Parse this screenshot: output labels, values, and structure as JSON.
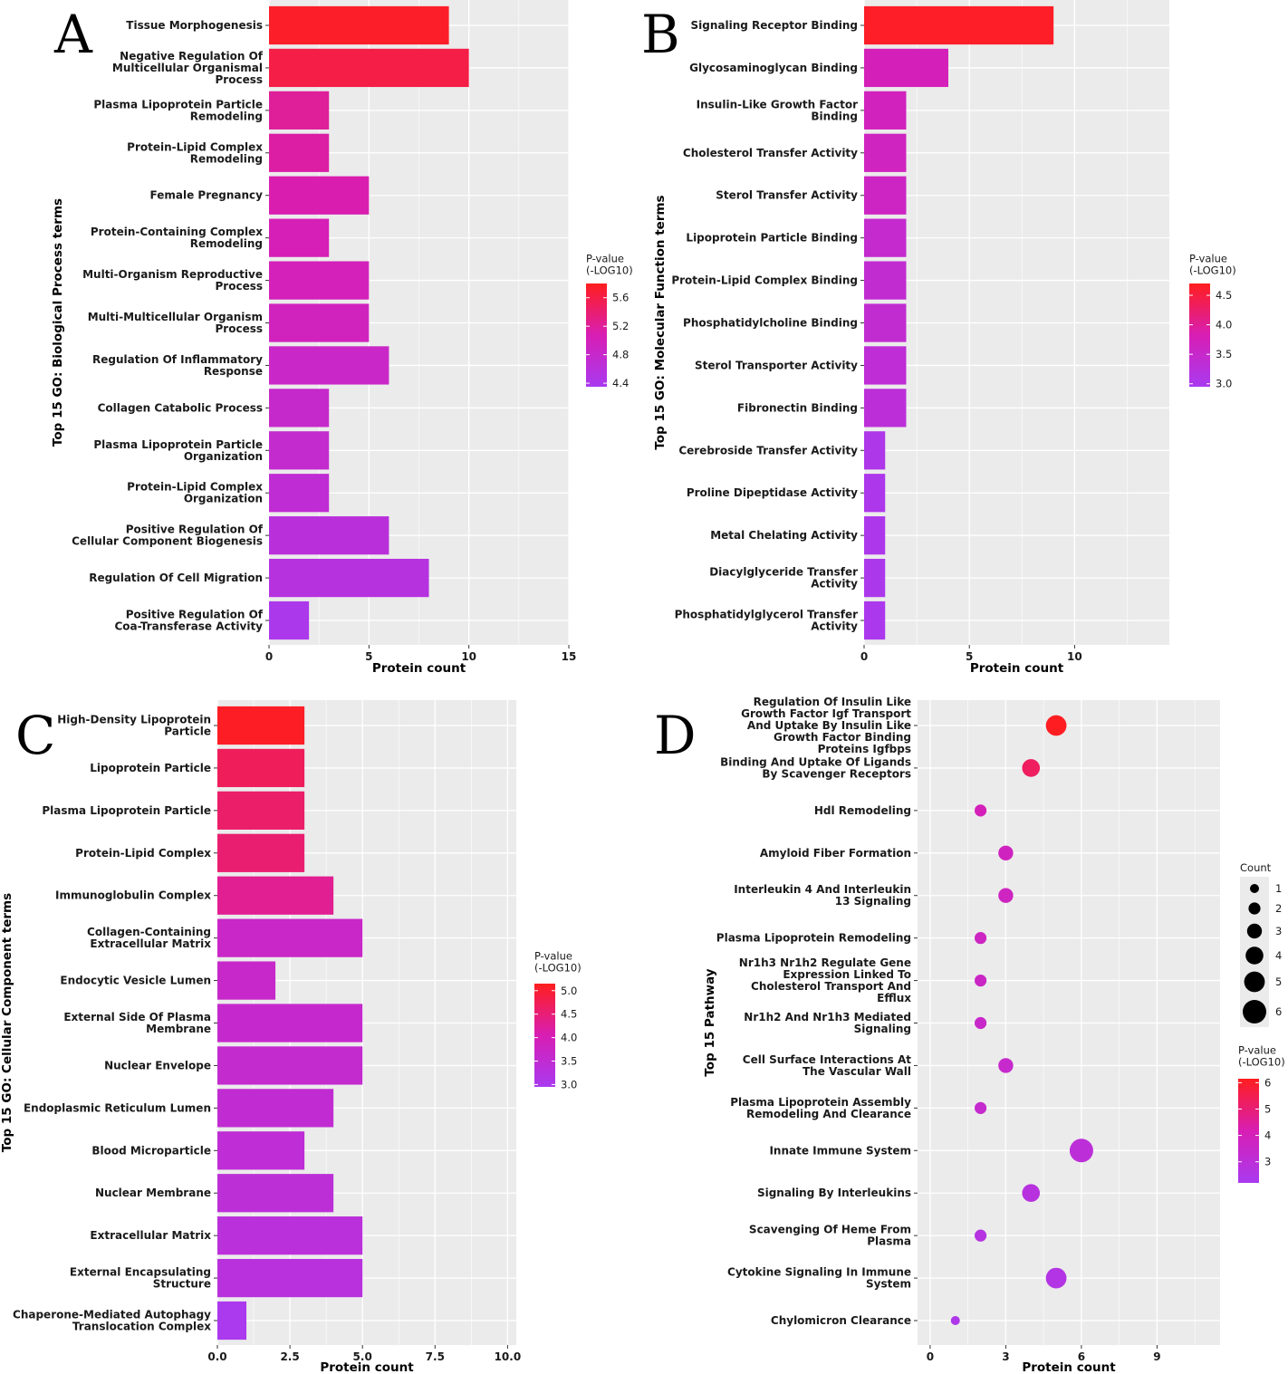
{
  "chart_data": [
    {
      "panel": "A",
      "type": "bar",
      "orientation": "horizontal",
      "xlabel": "Protein count",
      "ylabel": "Top 15 GO: Biological Process terms",
      "xlim": [
        0,
        15
      ],
      "xticks": [
        0,
        5,
        10,
        15
      ],
      "xtick_labels": [
        "0",
        "5",
        "10",
        "15"
      ],
      "categories": [
        "Tissue Morphogenesis",
        "Negative Regulation Of\nMulticellular Organismal\nProcess",
        "Plasma Lipoprotein Particle\nRemodeling",
        "Protein-Lipid Complex\nRemodeling",
        "Female Pregnancy",
        "Protein-Containing Complex\nRemodeling",
        "Multi-Organism Reproductive\nProcess",
        "Multi-Multicellular Organism\nProcess",
        "Regulation Of Inflammatory\nResponse",
        "Collagen Catabolic Process",
        "Plasma Lipoprotein Particle\nOrganization",
        "Protein-Lipid Complex\nOrganization",
        "Positive Regulation Of\nCellular Component Biogenesis",
        "Regulation Of Cell Migration",
        "Positive Regulation Of\nCoa-Transferase Activity"
      ],
      "values": [
        9,
        10,
        3,
        3,
        5,
        3,
        5,
        5,
        6,
        3,
        3,
        3,
        6,
        8,
        2
      ],
      "pvalue_log10": [
        5.75,
        5.6,
        5.2,
        5.15,
        5.1,
        5.05,
        5.0,
        4.95,
        4.85,
        4.8,
        4.75,
        4.7,
        4.6,
        4.55,
        4.4
      ],
      "legend": {
        "title": "P-value\n(-LOG10)",
        "range": [
          4.35,
          5.8
        ],
        "ticks": [
          4.4,
          4.8,
          5.2,
          5.6
        ],
        "tick_labels": [
          "4.4",
          "4.8",
          "5.2",
          "5.6"
        ]
      }
    },
    {
      "panel": "B",
      "type": "bar",
      "orientation": "horizontal",
      "xlabel": "Protein count",
      "ylabel": "Top 15 GO: Molecular Function terms",
      "xlim": [
        0,
        14.5
      ],
      "xticks": [
        0,
        5,
        10
      ],
      "xtick_labels": [
        "0",
        "5",
        "10"
      ],
      "categories": [
        "Signaling Receptor Binding",
        "Glycosaminoglycan Binding",
        "Insulin-Like Growth Factor\nBinding",
        "Cholesterol Transfer Activity",
        "Sterol Transfer Activity",
        "Lipoprotein Particle Binding",
        "Protein-Lipid Complex Binding",
        "Phosphatidylcholine Binding",
        "Sterol Transporter Activity",
        "Fibronectin Binding",
        "Cerebroside Transfer Activity",
        "Proline Dipeptidase Activity",
        "Metal Chelating Activity",
        "Diacylglyceride Transfer\nActivity",
        "Phosphatidylglycerol Transfer\nActivity"
      ],
      "values": [
        9,
        4,
        2,
        2,
        2,
        2,
        2,
        2,
        2,
        2,
        1,
        1,
        1,
        1,
        1
      ],
      "pvalue_log10": [
        4.65,
        3.75,
        3.7,
        3.65,
        3.6,
        3.45,
        3.4,
        3.4,
        3.35,
        3.3,
        3.05,
        3.03,
        3.02,
        3.01,
        3.0
      ],
      "legend": {
        "title": "P-value\n(-LOG10)",
        "range": [
          2.95,
          4.7
        ],
        "ticks": [
          3.0,
          3.5,
          4.0,
          4.5
        ],
        "tick_labels": [
          "3.0",
          "3.5",
          "4.0",
          "4.5"
        ]
      }
    },
    {
      "panel": "C",
      "type": "bar",
      "orientation": "horizontal",
      "xlabel": "Protein count",
      "ylabel": "Top 15 GO: Cellular Component terms",
      "xlim": [
        0,
        10.3
      ],
      "xticks": [
        0,
        2.5,
        5,
        7.5,
        10
      ],
      "xtick_labels": [
        "0.0",
        "2.5",
        "5.0",
        "7.5",
        "10.0"
      ],
      "categories": [
        "High-Density Lipoprotein\nParticle",
        "Lipoprotein Particle",
        "Plasma Lipoprotein Particle",
        "Protein-Lipid Complex",
        "Immunoglobulin Complex",
        "Collagen-Containing\nExtracellular Matrix",
        "Endocytic Vesicle Lumen",
        "External Side Of Plasma\nMembrane",
        "Nuclear Envelope",
        "Endoplasmic Reticulum Lumen",
        "Blood Microparticle",
        "Nuclear Membrane",
        "Extracellular Matrix",
        "External Encapsulating\nStructure",
        "Chaperone-Mediated Autophagy\nTranslocation Complex"
      ],
      "values": [
        3,
        3,
        3,
        3,
        4,
        5,
        2,
        5,
        5,
        4,
        3,
        4,
        5,
        5,
        1
      ],
      "pvalue_log10": [
        5.1,
        4.7,
        4.6,
        4.55,
        4.3,
        3.7,
        3.65,
        3.6,
        3.55,
        3.5,
        3.45,
        3.4,
        3.35,
        3.3,
        3.0
      ],
      "legend": {
        "title": "P-value\n(-LOG10)",
        "range": [
          2.95,
          5.15
        ],
        "ticks": [
          3.0,
          3.5,
          4.0,
          4.5,
          5.0
        ],
        "tick_labels": [
          "3.0",
          "3.5",
          "4.0",
          "4.5",
          "5.0"
        ]
      }
    },
    {
      "panel": "D",
      "type": "scatter",
      "subtype": "bubble",
      "xlabel": "Protein count",
      "ylabel": "Top 15 Pathway",
      "xlim": [
        -0.5,
        11.5
      ],
      "xticks": [
        0,
        3,
        6,
        9
      ],
      "xtick_labels": [
        "0",
        "3",
        "6",
        "9"
      ],
      "categories": [
        "Regulation Of Insulin Like\nGrowth Factor Igf Transport\nAnd Uptake By Insulin Like\nGrowth Factor Binding\nProteins Igfbps",
        "Binding And Uptake Of Ligands\nBy Scavenger Receptors",
        "Hdl Remodeling",
        "Amyloid Fiber Formation",
        "Interleukin 4 And Interleukin\n13 Signaling",
        "Plasma Lipoprotein Remodeling",
        "Nr1h3 Nr1h2 Regulate Gene\nExpression Linked To\nCholesterol Transport And\nEfflux",
        "Nr1h2 And Nr1h3 Mediated\nSignaling",
        "Cell Surface Interactions At\nThe Vascular Wall",
        "Plasma Lipoprotein Assembly\nRemodeling And Clearance",
        "Innate Immune System",
        "Signaling By Interleukins",
        "Scavenging Of Heme From\nPlasma",
        "Cytokine Signaling In Immune\nSystem",
        "Chylomicron Clearance"
      ],
      "values": [
        5,
        4,
        2,
        3,
        3,
        2,
        2,
        2,
        3,
        2,
        6,
        4,
        2,
        5,
        1
      ],
      "pvalue_log10": [
        6.1,
        5.3,
        4.0,
        3.8,
        3.75,
        3.7,
        3.6,
        3.5,
        3.4,
        3.35,
        3.0,
        2.8,
        2.7,
        2.6,
        2.4
      ],
      "size_legend": {
        "title": "Count",
        "values": [
          1,
          2,
          3,
          4,
          5,
          6
        ],
        "labels": [
          "1",
          "2",
          "3",
          "4",
          "5",
          "6"
        ]
      },
      "legend": {
        "title": "P-value\n(-LOG10)",
        "range": [
          2.2,
          6.15
        ],
        "ticks": [
          3,
          4,
          5,
          6
        ],
        "tick_labels": [
          "3",
          "4",
          "5",
          "6"
        ]
      }
    }
  ],
  "panel_labels": [
    "A",
    "B",
    "C",
    "D"
  ],
  "colors": {
    "panel_bg": "#ebebeb",
    "grid_major": "#ffffff",
    "low": "#a93af0",
    "mid": "#d81eb4",
    "high": "#ff1e1e"
  }
}
